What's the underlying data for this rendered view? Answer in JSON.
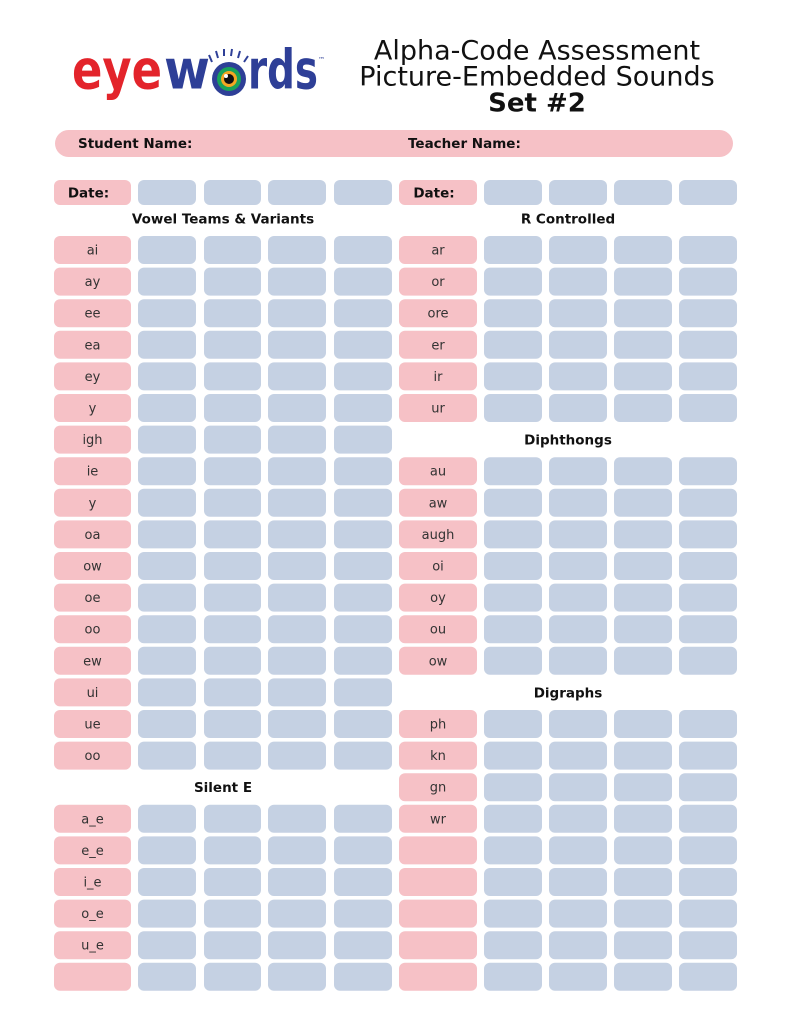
{
  "logo": {
    "parts": [
      "eye",
      "w",
      "rds"
    ],
    "tm": "™"
  },
  "title": {
    "line1": "Alpha-Code Assessment",
    "line2": "Picture-Embedded Sounds",
    "line3": "Set #2"
  },
  "name_bar": {
    "student": "Student Name:",
    "teacher": "Teacher Name:"
  },
  "left": {
    "date": "Date:",
    "sections": [
      {
        "heading": "Vowel Teams & Variants",
        "rows": [
          "ai",
          "ay",
          "ee",
          "ea",
          "ey",
          "y",
          "igh",
          "ie",
          "y",
          "oa",
          "ow",
          "oe",
          "oo",
          "ew",
          "ui",
          "ue",
          "oo"
        ]
      },
      {
        "heading": "Silent E",
        "rows": [
          "a_e",
          "e_e",
          "i_e",
          "o_e",
          "u_e"
        ]
      }
    ]
  },
  "right": {
    "date": "Date:",
    "sections": [
      {
        "heading": "R Controlled",
        "rows": [
          "ar",
          "or",
          "ore",
          "er",
          "ir",
          "ur"
        ]
      },
      {
        "heading": "Diphthongs",
        "rows": [
          "au",
          "aw",
          "augh",
          "oi",
          "oy",
          "ou",
          "ow"
        ]
      },
      {
        "heading": "Digraphs",
        "rows": [
          "ph",
          "kn",
          "gn",
          "wr"
        ]
      }
    ]
  }
}
